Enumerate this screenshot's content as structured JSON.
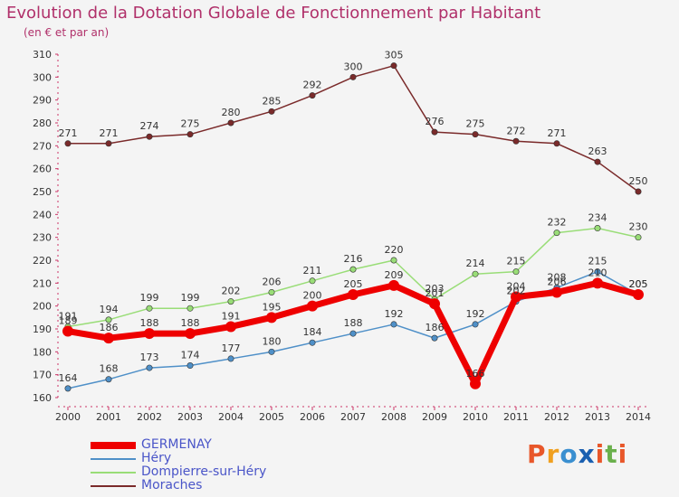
{
  "header": {
    "title": "Evolution de la Dotation Globale de Fonctionnement par Habitant",
    "subtitle": "(en € et par an)"
  },
  "logo": {
    "text": "Proxiti",
    "colors": [
      "#e8572a",
      "#f0a020",
      "#3a8fd0",
      "#1a5fb0",
      "#e8572a",
      "#6ab04c",
      "#e8572a"
    ]
  },
  "chart_data": {
    "type": "line",
    "title": "Evolution de la Dotation Globale de Fonctionnement par Habitant",
    "subtitle": "(en € et par an)",
    "x": [
      "2000",
      "2001",
      "2002",
      "2003",
      "2004",
      "2005",
      "2006",
      "2007",
      "2008",
      "2009",
      "2010",
      "2011",
      "2012",
      "2013",
      "2014"
    ],
    "ylim": [
      160,
      310
    ],
    "yticks": [
      160,
      170,
      180,
      190,
      200,
      210,
      220,
      230,
      240,
      250,
      260,
      270,
      280,
      290,
      300,
      310
    ],
    "grid": false,
    "legend_position": "bottom-left",
    "series": [
      {
        "name": "GERMENAY",
        "color": "#ee0000",
        "values": [
          189,
          186,
          188,
          188,
          191,
          195,
          200,
          205,
          209,
          201,
          166,
          204,
          206,
          210,
          205
        ],
        "labels": [
          "189",
          "186",
          "188",
          "188",
          "191",
          "195",
          "200",
          "205",
          "209",
          "201",
          "166",
          "204",
          "206",
          "210",
          "205"
        ]
      },
      {
        "name": "Héry",
        "color": "#4f90c8",
        "values": [
          164,
          168,
          173,
          174,
          177,
          180,
          184,
          188,
          192,
          186,
          192,
          202,
          208,
          215,
          205
        ],
        "labels": [
          "164",
          "168",
          "173",
          "174",
          "177",
          "180",
          "184",
          "188",
          "192",
          "186",
          "192",
          "202",
          "208",
          "215",
          "205"
        ]
      },
      {
        "name": "Dompierre-sur-Héry",
        "color": "#99dd77",
        "values": [
          191,
          194,
          199,
          199,
          202,
          206,
          211,
          216,
          220,
          203,
          214,
          215,
          232,
          234,
          230
        ],
        "labels": [
          "191",
          "194",
          "199",
          "199",
          "202",
          "206",
          "211",
          "216",
          "220",
          "203",
          "214",
          "215",
          "232",
          "234",
          "230"
        ]
      },
      {
        "name": "Moraches",
        "color": "#7a2a2a",
        "values": [
          271,
          271,
          274,
          275,
          280,
          285,
          292,
          300,
          305,
          276,
          275,
          272,
          271,
          263,
          250
        ],
        "labels": [
          "271",
          "271",
          "274",
          "275",
          "280",
          "285",
          "292",
          "300",
          "305",
          "276",
          "275",
          "272",
          "271",
          "263",
          "250"
        ]
      }
    ]
  }
}
